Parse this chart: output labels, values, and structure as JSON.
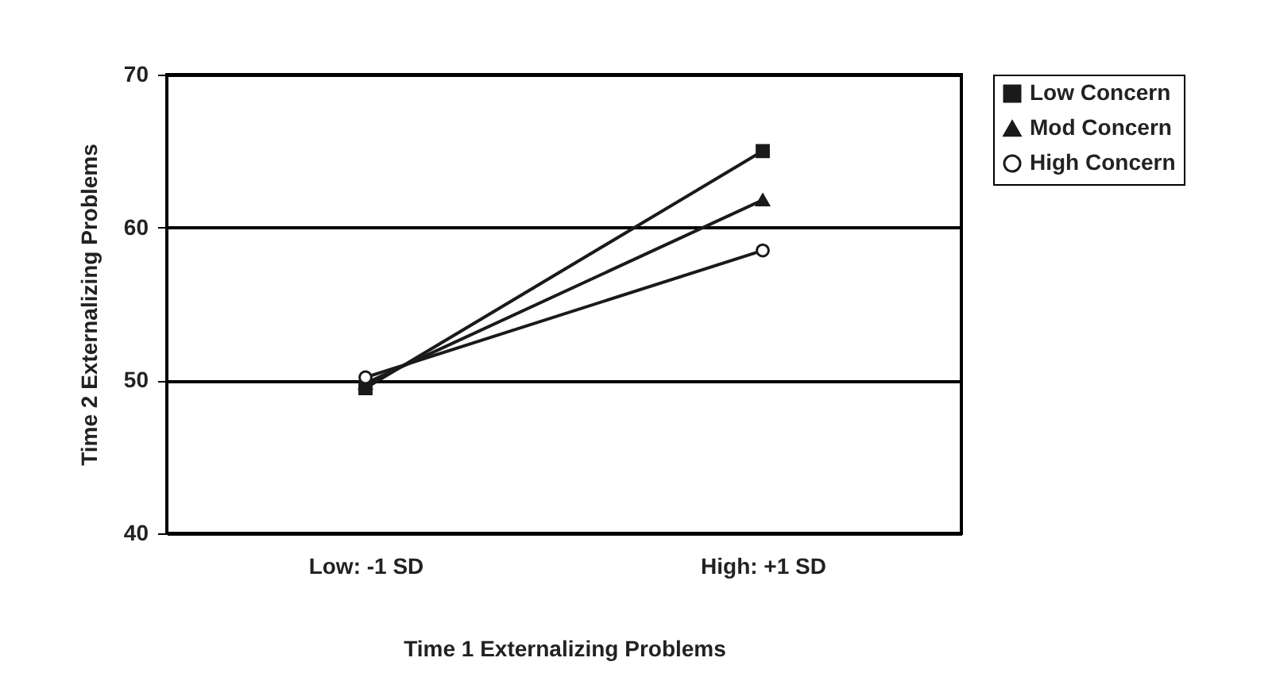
{
  "chart_data": {
    "type": "line",
    "xlabel": "Time 1 Externalizing Problems",
    "ylabel": "Time 2 Externalizing Problems",
    "categories": [
      "Low: -1 SD",
      "High: +1 SD"
    ],
    "ylim": [
      40,
      70
    ],
    "yticks": [
      40,
      50,
      60,
      70
    ],
    "grid": "y",
    "legend": "right",
    "line_style": "solid",
    "series": [
      {
        "name": "Low Concern",
        "color": "#1a1a1a",
        "marker": "square",
        "values": [
          49.5,
          65
        ]
      },
      {
        "name": "Mod Concern",
        "color": "#1a1a1a",
        "marker": "triangle",
        "values": [
          49.8,
          61.8
        ]
      },
      {
        "name": "High Concern",
        "color": "#1a1a1a",
        "marker": "circle",
        "values": [
          50.2,
          58.5
        ]
      }
    ]
  }
}
